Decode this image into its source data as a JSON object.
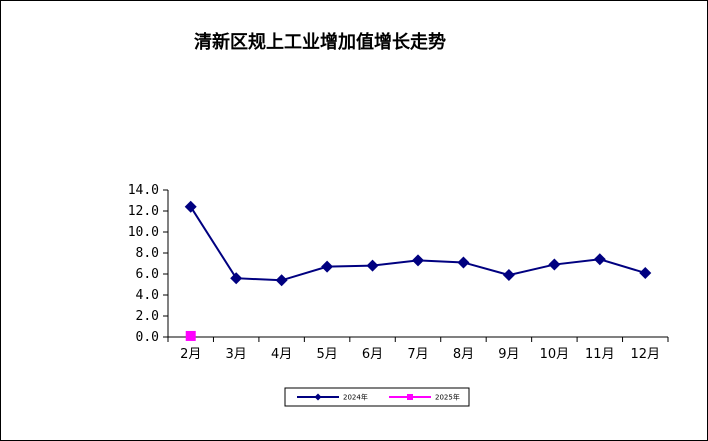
{
  "chart_data": {
    "type": "line",
    "title": "清新区规上工业增加值增长走势",
    "xlabel": "",
    "ylabel": "",
    "categories": [
      "2月",
      "3月",
      "4月",
      "5月",
      "6月",
      "7月",
      "8月",
      "9月",
      "10月",
      "11月",
      "12月"
    ],
    "ylim": [
      0,
      14
    ],
    "yticks": [
      "0.0",
      "2.0",
      "4.0",
      "6.0",
      "8.0",
      "10.0",
      "12.0",
      "14.0"
    ],
    "grid": false,
    "legend_position": "bottom",
    "series": [
      {
        "name": "2024年",
        "color": "#000080",
        "marker": "diamond",
        "values": [
          12.4,
          5.6,
          5.4,
          6.7,
          6.8,
          7.3,
          7.1,
          5.9,
          6.9,
          7.4,
          6.1
        ]
      },
      {
        "name": "2025年",
        "color": "#ff00ff",
        "marker": "square",
        "values": [
          0.1,
          null,
          null,
          null,
          null,
          null,
          null,
          null,
          null,
          null,
          null
        ]
      }
    ]
  }
}
